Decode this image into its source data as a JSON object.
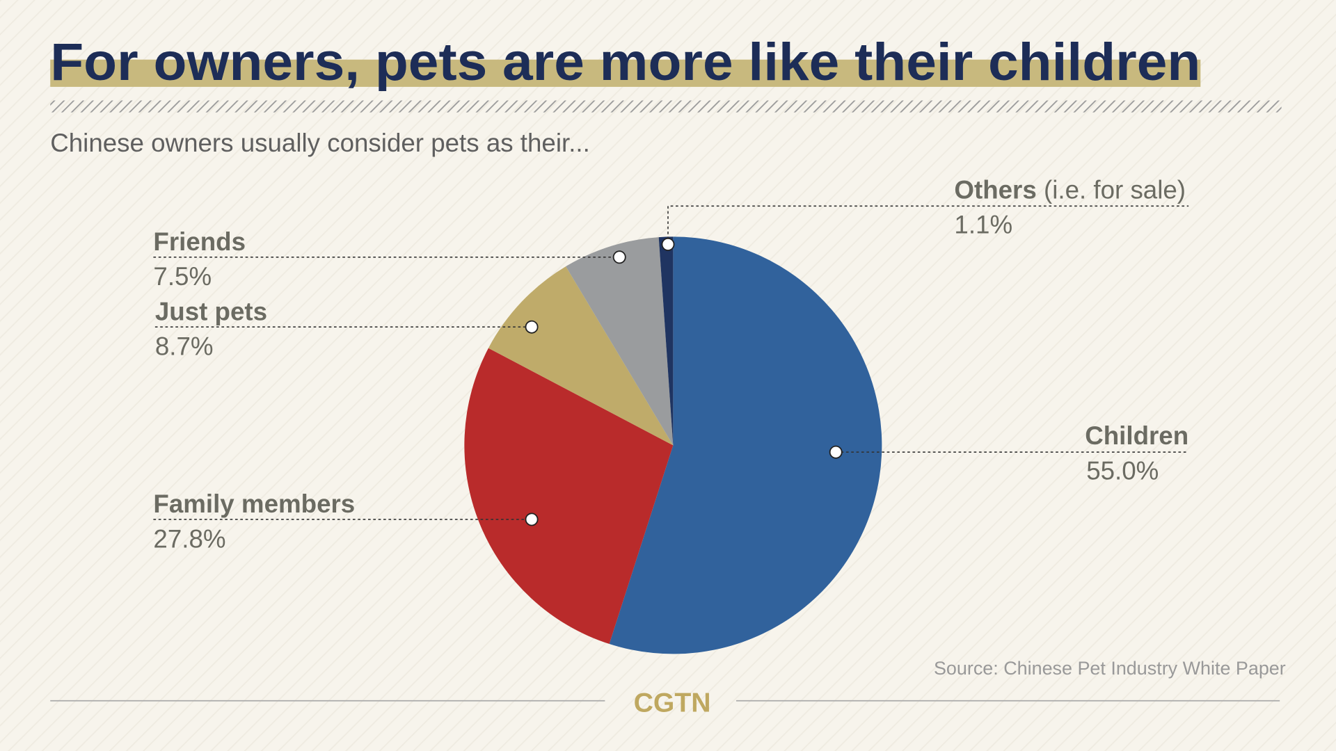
{
  "chart_data": {
    "type": "pie",
    "title": "For owners, pets are more like their children",
    "subtitle": "Chinese owners usually consider pets as their...",
    "categories": [
      "Children",
      "Family members",
      "Just pets",
      "Friends",
      "Others"
    ],
    "category_notes": [
      null,
      null,
      null,
      null,
      "(i.e. for sale)"
    ],
    "values": [
      55.0,
      27.8,
      8.7,
      7.5,
      1.1
    ],
    "value_labels": [
      "55.0%",
      "27.8%",
      "8.7%",
      "7.5%",
      "1.1%"
    ],
    "colors": [
      "#31629c",
      "#b92b2b",
      "#bfab6a",
      "#9a9c9e",
      "#1f3461"
    ],
    "source": "Source: Chinese Pet Industry White Paper",
    "logo": "CGTN"
  }
}
